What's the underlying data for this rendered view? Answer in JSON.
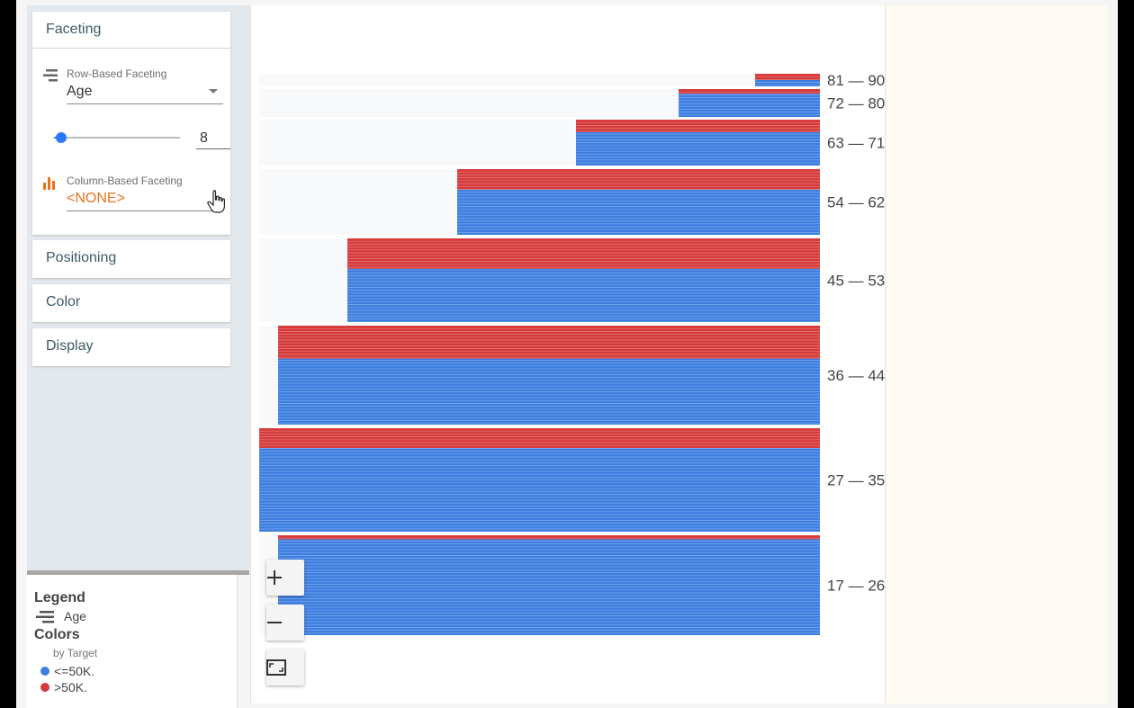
{
  "sidebar": {
    "faceting": {
      "title": "Faceting",
      "row_label": "Row-Based Faceting",
      "row_value": "Age",
      "bins_value": "8",
      "bins_fraction": 0.06,
      "col_label": "Column-Based Faceting",
      "col_value": "<NONE>"
    },
    "positioning": {
      "title": "Positioning"
    },
    "color": {
      "title": "Color"
    },
    "display": {
      "title": "Display"
    }
  },
  "legend": {
    "title": "Legend",
    "facet_name": "Age",
    "colors_title": "Colors",
    "colors_by": "by Target",
    "items": [
      {
        "label": "<=50K.",
        "color": "#3d7ee0"
      },
      {
        "label": ">50K.",
        "color": "#d63a3a"
      }
    ]
  },
  "zoom": {
    "in_icon": "plus-icon",
    "out_icon": "minus-icon",
    "fit_icon": "fit-screen-icon"
  },
  "chart_data": {
    "type": "facet-dot-grid",
    "facet_by": "Age",
    "color_by": "Target",
    "series_colors": {
      "<=50K.": "#3d7ee0",
      ">50K.": "#d63a3a"
    },
    "rows": [
      {
        "label": "81 — 90",
        "blue_rows": 1,
        "red_rows": 1
      },
      {
        "label": "72 — 80",
        "blue_rows": 5,
        "red_rows": 1
      },
      {
        "label": "63 — 71",
        "blue_rows": 8,
        "red_rows": 3
      },
      {
        "label": "54 — 62",
        "blue_rows": 11,
        "red_rows": 5
      },
      {
        "label": "45 — 53",
        "blue_rows": 14,
        "red_rows": 8
      },
      {
        "label": "36 — 44",
        "blue_rows": 16,
        "red_rows": 8
      },
      {
        "label": "27 — 35",
        "blue_rows": 21,
        "red_rows": 5
      },
      {
        "label": "17 — 26",
        "blue_rows": 24,
        "red_rows": 1
      }
    ]
  }
}
